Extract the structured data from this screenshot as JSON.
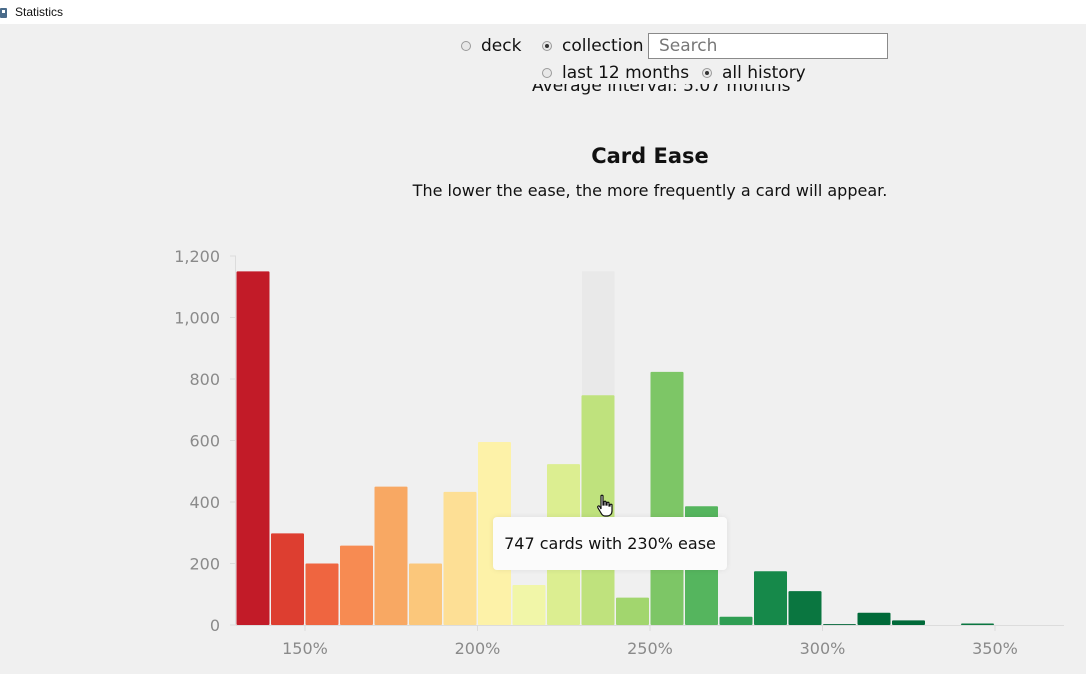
{
  "window": {
    "title": "Statistics"
  },
  "controls": {
    "deck_label": "deck",
    "collection_label": "collection",
    "search_placeholder": "Search",
    "last12_label": "last 12 months",
    "all_history_label": "all history",
    "selected_scope": "collection",
    "selected_range": "all history"
  },
  "previous_section": {
    "clipped_text": "Average interval: 5.07 months"
  },
  "section": {
    "title": "Card Ease",
    "subtitle": "The lower the ease, the more frequently a card will appear."
  },
  "tooltip": {
    "text": "747 cards with 230% ease"
  },
  "chart_data": {
    "type": "bar",
    "title": "Card Ease",
    "xlabel": "",
    "ylabel": "",
    "ylim": [
      0,
      1200
    ],
    "y_ticks": [
      "0",
      "200",
      "400",
      "600",
      "800",
      "1,000",
      "1,200"
    ],
    "y_tick_values": [
      0,
      200,
      400,
      600,
      800,
      1000,
      1200
    ],
    "x_ticks": [
      "150%",
      "200%",
      "250%",
      "300%",
      "350%"
    ],
    "x_tick_values": [
      150,
      200,
      250,
      300,
      350
    ],
    "xlim": [
      130,
      370
    ],
    "bin_width": 10,
    "highlighted_bin": 230,
    "bins": [
      130,
      140,
      150,
      160,
      170,
      180,
      190,
      200,
      210,
      220,
      230,
      240,
      250,
      260,
      270,
      280,
      290,
      300,
      310,
      320,
      330,
      340
    ],
    "values": [
      1150,
      298,
      200,
      258,
      450,
      200,
      433,
      595,
      130,
      523,
      747,
      89,
      823,
      386,
      27,
      175,
      110,
      3,
      40,
      15,
      0,
      5
    ],
    "colors": [
      "#c21b28",
      "#dd3e30",
      "#ef6540",
      "#f78b52",
      "#f8a863",
      "#fbc77b",
      "#fddf95",
      "#fdf2a8",
      "#f1f6a8",
      "#dcee91",
      "#bfe27d",
      "#a2d66e",
      "#7dc666",
      "#55b55e",
      "#2f9e53",
      "#16894a",
      "#0a7640",
      "#006638",
      "#006a39",
      "#006a39",
      "#006a39",
      "#0a7640"
    ]
  }
}
